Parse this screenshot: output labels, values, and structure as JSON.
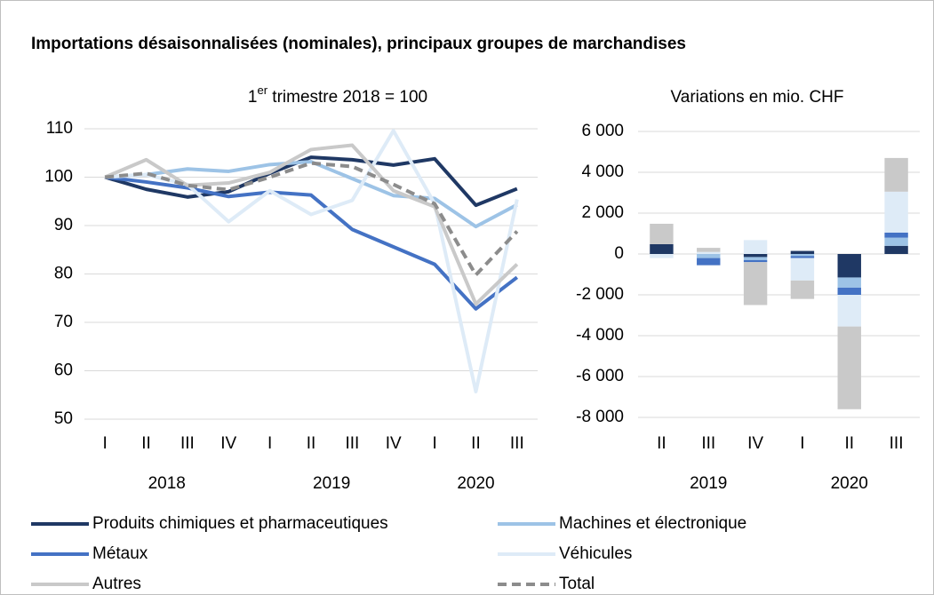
{
  "title": "Importations désaisonnalisées (nominales), principaux groupes de marchandises",
  "chart_data": [
    {
      "type": "line",
      "subtitle": "1er trimestre 2018 = 100",
      "categories": [
        "I",
        "II",
        "III",
        "IV",
        "I",
        "II",
        "III",
        "IV",
        "I",
        "II",
        "III"
      ],
      "x_groups": [
        {
          "label": "2018",
          "start": 0,
          "end": 3
        },
        {
          "label": "2019",
          "start": 4,
          "end": 7
        },
        {
          "label": "2020",
          "start": 8,
          "end": 10
        }
      ],
      "ylim": [
        50,
        110
      ],
      "yticks": [
        50,
        60,
        70,
        80,
        90,
        100,
        110
      ],
      "grid": true,
      "series": [
        {
          "name": "Produits chimiques et pharmaceutiques",
          "color": "#1f3864",
          "values": [
            100,
            97.5,
            95.9,
            97,
            100.8,
            104.1,
            103.6,
            102.5,
            103.8,
            94.2,
            97.6
          ]
        },
        {
          "name": "Machines et électronique",
          "color": "#9dc3e6",
          "values": [
            100,
            100.5,
            101.7,
            101.2,
            102.6,
            103.2,
            99.7,
            96.2,
            95.6,
            89.8,
            94.3
          ]
        },
        {
          "name": "Métaux",
          "color": "#4472c4",
          "values": [
            100,
            99,
            97.8,
            96,
            96.9,
            96.3,
            89.2,
            85.6,
            82,
            72.8,
            79.3
          ]
        },
        {
          "name": "Véhicules",
          "color": "#deebf7",
          "values": [
            100,
            100.5,
            98.5,
            90.8,
            97.2,
            92.3,
            95.2,
            109.6,
            94.5,
            55.7,
            95.4
          ]
        },
        {
          "name": "Autres",
          "color": "#c9c9c9",
          "values": [
            100,
            103.6,
            98.3,
            98.8,
            101,
            105.7,
            106.6,
            97.2,
            93.9,
            73.8,
            82
          ]
        },
        {
          "name": "Total",
          "color": "#8c8c8c",
          "dashed": true,
          "values": [
            100,
            100.8,
            98.3,
            97.4,
            100,
            102.9,
            102.2,
            98.5,
            94.5,
            79.8,
            88.8
          ]
        }
      ]
    },
    {
      "type": "stacked_bar",
      "subtitle": "Variations en mio. CHF",
      "categories": [
        "II",
        "III",
        "IV",
        "I",
        "II",
        "III"
      ],
      "x_groups": [
        {
          "label": "2019",
          "start": 0,
          "end": 2
        },
        {
          "label": "2020",
          "start": 3,
          "end": 5
        }
      ],
      "ylim": [
        -8000,
        6000
      ],
      "yticks": [
        {
          "value": -8000,
          "label": "-8 000"
        },
        {
          "value": -6000,
          "label": "-6 000"
        },
        {
          "value": -4000,
          "label": "-4 000"
        },
        {
          "value": -2000,
          "label": "-2 000"
        },
        0,
        {
          "value": 2000,
          "label": "2 000"
        },
        {
          "value": 4000,
          "label": "4 000"
        },
        {
          "value": 6000,
          "label": "6 000"
        }
      ],
      "grid": true,
      "series": [
        {
          "color": "#1f3864",
          "values": [
            480,
            0,
            -150,
            150,
            -1150,
            400
          ]
        },
        {
          "color": "#9dc3e6",
          "values": [
            0,
            -200,
            -150,
            -100,
            -500,
            400
          ]
        },
        {
          "color": "#4472c4",
          "values": [
            0,
            -350,
            -100,
            -100,
            -350,
            250
          ]
        },
        {
          "color": "#deebf7",
          "values": [
            -200,
            100,
            680,
            -1100,
            -1550,
            2000
          ]
        },
        {
          "color": "#c9c9c9",
          "values": [
            1000,
            200,
            -2100,
            -900,
            -4050,
            1650
          ]
        }
      ]
    }
  ]
}
